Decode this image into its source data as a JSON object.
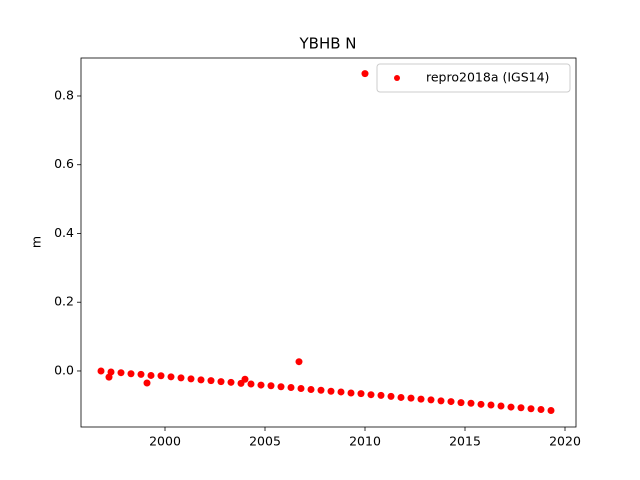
{
  "chart_data": {
    "type": "scatter",
    "title": "YBHB N",
    "ylabel": "m",
    "xlim": [
      1995.8,
      2020.55
    ],
    "ylim": [
      -0.163,
      0.9105
    ],
    "xticks": [
      2000,
      2005,
      2010,
      2015,
      2020
    ],
    "yticks": [
      {
        "value": 0,
        "label": "0.0"
      },
      0.2,
      0.4,
      0.6,
      0.8
    ],
    "legend": "upper right",
    "series": [
      {
        "name": "repro2018a (IGS14)",
        "color": "#ff0000",
        "x": [
          1996.8,
          1997.3,
          1997.8,
          1998.3,
          1998.8,
          1999.3,
          1999.8,
          2000.3,
          2000.8,
          2001.3,
          2001.8,
          2002.3,
          2002.8,
          2003.3,
          2003.8,
          2004.3,
          2004.8,
          2005.3,
          2005.8,
          2006.3,
          2006.8,
          2007.3,
          2007.8,
          2008.3,
          2008.8,
          2009.3,
          2009.8,
          2010.3,
          2010.8,
          2011.3,
          2011.8,
          2012.3,
          2012.8,
          2013.3,
          2013.8,
          2014.3,
          2014.8,
          2015.3,
          2015.8,
          2016.3,
          2016.8,
          2017.3,
          2017.8,
          2018.3,
          2018.8,
          2019.3,
          1999.1,
          1997.2,
          2004.0,
          2006.7,
          2010.0
        ],
        "values": [
          0.0,
          -0.003,
          -0.005,
          -0.008,
          -0.01,
          -0.013,
          -0.014,
          -0.017,
          -0.02,
          -0.023,
          -0.026,
          -0.028,
          -0.031,
          -0.033,
          -0.036,
          -0.038,
          -0.041,
          -0.043,
          -0.046,
          -0.048,
          -0.051,
          -0.054,
          -0.056,
          -0.059,
          -0.061,
          -0.064,
          -0.066,
          -0.069,
          -0.071,
          -0.074,
          -0.077,
          -0.079,
          -0.082,
          -0.084,
          -0.087,
          -0.089,
          -0.092,
          -0.094,
          -0.097,
          -0.099,
          -0.102,
          -0.105,
          -0.107,
          -0.11,
          -0.112,
          -0.115,
          -0.035,
          -0.018,
          -0.024,
          0.027,
          0.865
        ]
      }
    ]
  }
}
